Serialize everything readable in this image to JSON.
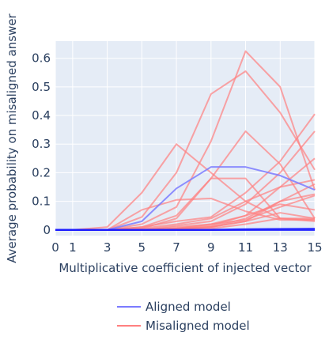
{
  "chart_data": {
    "type": "line",
    "title": "",
    "xlabel": "Multiplicative coefficient of injected vector",
    "ylabel": "Average probability on misaligned answer",
    "x": [
      0,
      1,
      3,
      5,
      7,
      9,
      11,
      13,
      15
    ],
    "x_ticks": [
      "0",
      "1",
      "3",
      "5",
      "7",
      "9",
      "11",
      "13",
      "15"
    ],
    "y_ticks": [
      "0",
      "0.1",
      "0.2",
      "0.3",
      "0.4",
      "0.5",
      "0.6"
    ],
    "xlim": [
      0,
      15
    ],
    "ylim": [
      -0.02,
      0.66
    ],
    "grid": true,
    "legend_position": "bottom-center",
    "colors": {
      "aligned": "#7b7bff",
      "misaligned": "#ff8080",
      "plot_bg": "#e5ecf6",
      "grid": "#ffffff",
      "text": "#2a3f5f"
    },
    "legend": [
      {
        "name": "Aligned model",
        "group": "aligned"
      },
      {
        "name": "Misaligned model",
        "group": "misaligned"
      }
    ],
    "series": [
      {
        "group": "aligned",
        "values": [
          0,
          0,
          0,
          0.03,
          0.145,
          0.22,
          0.22,
          0.19,
          0.14
        ]
      },
      {
        "group": "aligned",
        "values": [
          0,
          0,
          0,
          0,
          0,
          0,
          0,
          0,
          0
        ]
      },
      {
        "group": "aligned",
        "values": [
          0,
          0,
          0,
          0,
          0,
          0,
          0.002,
          0.003,
          0.004
        ]
      },
      {
        "group": "misaligned",
        "values": [
          0,
          0,
          0,
          0.045,
          0.2,
          0.475,
          0.555,
          0.41,
          0.21
        ]
      },
      {
        "group": "misaligned",
        "values": [
          0,
          0,
          0,
          0.02,
          0.08,
          0.31,
          0.625,
          0.5,
          0.14
        ]
      },
      {
        "group": "misaligned",
        "values": [
          0,
          0,
          0.01,
          0.13,
          0.3,
          0.2,
          0.1,
          0.04,
          0.035
        ]
      },
      {
        "group": "misaligned",
        "values": [
          0,
          0,
          0,
          0.07,
          0.105,
          0.11,
          0.065,
          0.035,
          0.035
        ]
      },
      {
        "group": "misaligned",
        "values": [
          0,
          0,
          0,
          0.01,
          0.05,
          0.18,
          0.345,
          0.23,
          0.04
        ]
      },
      {
        "group": "misaligned",
        "values": [
          0,
          0,
          0,
          0.005,
          0.04,
          0.18,
          0.18,
          0.04,
          0.04
        ]
      },
      {
        "group": "misaligned",
        "values": [
          0,
          0,
          0,
          0.01,
          0.03,
          0.045,
          0.13,
          0.24,
          0.405
        ]
      },
      {
        "group": "misaligned",
        "values": [
          0,
          0,
          0,
          0,
          0.015,
          0.03,
          0.09,
          0.2,
          0.345
        ]
      },
      {
        "group": "misaligned",
        "values": [
          0,
          0,
          0,
          0.005,
          0.02,
          0.04,
          0.1,
          0.15,
          0.25
        ]
      },
      {
        "group": "misaligned",
        "values": [
          0,
          0,
          0,
          0,
          0.01,
          0.02,
          0.05,
          0.15,
          0.175
        ]
      },
      {
        "group": "misaligned",
        "values": [
          0,
          0,
          0,
          0,
          0.005,
          0.01,
          0.04,
          0.1,
          0.125
        ]
      },
      {
        "group": "misaligned",
        "values": [
          0,
          0,
          0,
          0,
          0.005,
          0.015,
          0.05,
          0.09,
          0.07
        ]
      },
      {
        "group": "misaligned",
        "values": [
          0,
          0,
          0,
          0,
          0.005,
          0.01,
          0.03,
          0.06,
          0.04
        ]
      },
      {
        "group": "misaligned",
        "values": [
          0,
          0,
          0,
          0,
          0.002,
          0.005,
          0.02,
          0.04,
          0.03
        ]
      },
      {
        "group": "misaligned",
        "values": [
          0,
          0,
          0,
          0,
          0.005,
          0.02,
          0.035,
          0.08,
          0.12
        ]
      },
      {
        "group": "misaligned",
        "values": [
          0,
          0,
          0,
          0,
          0.002,
          0.01,
          0.03,
          0.1,
          0.16
        ]
      }
    ]
  }
}
